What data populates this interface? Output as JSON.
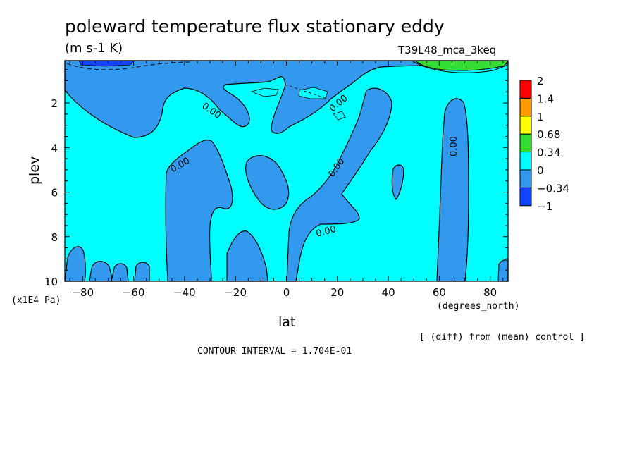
{
  "chart_data": {
    "type": "contour",
    "title": "poleward temperature flux stationary eddy",
    "units": "(m s-1 K)",
    "dataset": "T39L48_mca_3keq",
    "xlabel": "lat",
    "x_units": "(degrees_north)",
    "ylabel": "plev",
    "y_units": "(x1E4 Pa)",
    "xlim": [
      -87,
      87
    ],
    "ylim": [
      10,
      0.1
    ],
    "x_ticks": [
      -80,
      -60,
      -40,
      -20,
      0,
      20,
      40,
      60,
      80
    ],
    "x_tick_labels": [
      "-80",
      "-60",
      "-40",
      "-20",
      "0",
      "20",
      "40",
      "60",
      "80"
    ],
    "y_ticks": [
      2,
      4,
      6,
      8,
      10
    ],
    "y_tick_labels": [
      "2",
      "4",
      "6",
      "8",
      "10"
    ],
    "footnote": "[ (diff) from (mean) control ]",
    "contour_interval": "CONTOUR INTERVAL = 1.704E-01",
    "contour_label": "0.00",
    "colorbar": {
      "labels": [
        "2",
        "1.4",
        "1",
        "0.68",
        "0.34",
        "0",
        "-0.34",
        "-1"
      ],
      "colors": [
        "#ff0000",
        "#ff9900",
        "#ffff00",
        "#33dd33",
        "#00ffff",
        "#3399ee",
        "#1144ff"
      ]
    },
    "background_color": "#00ffff",
    "negative_color": "#3399ee",
    "strong_negative_color": "#1144ff",
    "positive_color": "#33dd33",
    "regions": [
      {
        "name": "upper-band",
        "lat": [
          -87,
          -82,
          -78,
          -76,
          -72,
          -68,
          -60,
          -55,
          -50,
          -45,
          -40,
          -35,
          -30,
          -25,
          -20,
          -12,
          -10,
          -6,
          -2,
          0,
          2,
          4,
          6,
          10,
          14,
          16,
          18,
          20,
          22,
          25,
          30,
          33,
          35,
          37,
          40,
          45,
          50,
          55,
          60,
          64,
          66,
          68,
          72,
          80,
          87,
          87,
          -87
        ],
        "plev": [
          0.1,
          0.1,
          0.1,
          0.1,
          0.1,
          0.1,
          0.1,
          0.1,
          0.1,
          0.1,
          0.1,
          0.1,
          0.1,
          0.1,
          0.1,
          0.1,
          0.1,
          0.1,
          0.1,
          0.1,
          0.1,
          0.1,
          0.1,
          0.1,
          0.1,
          0.1,
          0.1,
          0.1,
          0.1,
          0.1,
          0.1,
          0.1,
          0.1,
          0.1,
          0.1,
          0.1,
          0.1,
          0.1,
          0.1,
          0.1,
          0.1,
          0.1,
          0.1,
          0.1,
          0.1,
          0.1,
          0.1
        ]
      },
      {
        "name": "neg-south-top",
        "lat": [
          -87,
          -84,
          -82,
          -78,
          -75,
          -72,
          -68,
          -64,
          -60,
          -56,
          -54,
          -52,
          -50,
          -44,
          -38,
          -34,
          -30,
          -26,
          -22,
          -18,
          -15,
          -14,
          -16,
          -20,
          -24,
          -26,
          -28,
          -28,
          -20,
          -12,
          -6,
          -2,
          0,
          0,
          -87
        ],
        "plev": [
          0.1,
          0.1,
          0.1,
          0.1,
          0.1,
          0.1,
          0.1,
          0.1,
          0.1,
          0.1,
          0.1,
          0.1,
          0.1,
          0.1,
          0.1,
          0.1,
          0.1,
          0.1,
          0.1,
          0.1,
          0.1,
          0.1,
          0.1,
          0.1,
          0.1,
          0.1,
          0.1,
          0.1,
          0.1,
          0.1,
          0.1,
          0.1,
          0.1,
          0.1,
          0.1
        ]
      }
    ]
  }
}
